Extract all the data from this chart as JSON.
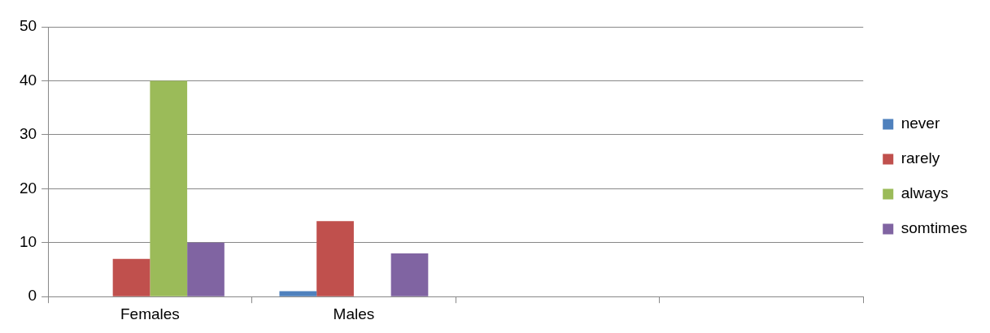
{
  "chart_data": {
    "type": "bar",
    "categories": [
      "Females",
      "Males",
      null,
      null
    ],
    "series": [
      {
        "name": "never",
        "color": "#4f81bd",
        "values": [
          0,
          1,
          null,
          null
        ]
      },
      {
        "name": "rarely",
        "color": "#c0504d",
        "values": [
          7,
          14,
          null,
          null
        ]
      },
      {
        "name": "always",
        "color": "#9bbb59",
        "values": [
          40,
          0,
          null,
          null
        ]
      },
      {
        "name": "somtimes",
        "color": "#8064a2",
        "values": [
          10,
          8,
          null,
          null
        ]
      }
    ],
    "ylim": [
      0,
      50
    ],
    "yticks": [
      0,
      10,
      20,
      30,
      40,
      50
    ],
    "grid": "y",
    "legend": "right"
  }
}
